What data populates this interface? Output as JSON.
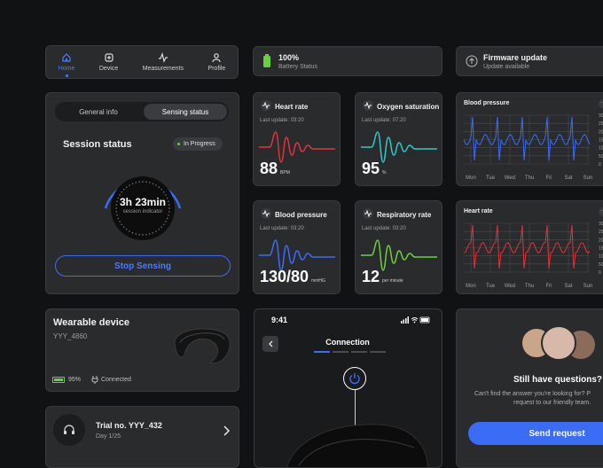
{
  "nav": {
    "items": [
      {
        "label": "Home",
        "icon": "home-icon",
        "active": true
      },
      {
        "label": "Device",
        "icon": "device-icon"
      },
      {
        "label": "Measurements",
        "icon": "pulse-icon"
      },
      {
        "label": "Profile",
        "icon": "person-icon"
      }
    ]
  },
  "battery_status": {
    "value": "100%",
    "label": "Battery Status"
  },
  "firmware": {
    "title": "Firmware update",
    "subtitle": "Update available"
  },
  "session": {
    "tabs": [
      "General info",
      "Sensing status"
    ],
    "title": "Session status",
    "badge": "In Progress",
    "duration": "3h 23min",
    "indicator_label": "session indicator",
    "stop_label": "Stop Sensing"
  },
  "metrics": [
    {
      "title": "Heart rate",
      "updated": "Last update: 03:20",
      "value": "88",
      "unit": "BPM",
      "color": "#e0343a"
    },
    {
      "title": "Oxygen saturation",
      "updated": "Last update: 07:20",
      "value": "95",
      "unit": "%",
      "color": "#2fc7c9"
    },
    {
      "title": "Blood pressure",
      "updated": "Last update: 03:20",
      "value": "130/80",
      "unit": "mmHG",
      "color": "#3b6cf6"
    },
    {
      "title": "Respiratory rate",
      "updated": "Last update: 03:20",
      "value": "12",
      "unit": "per minute",
      "color": "#6bd13a"
    }
  ],
  "chart_data": [
    {
      "type": "line",
      "title": "Blood pressure",
      "categories": [
        "Mon",
        "Tue",
        "Wed",
        "Thu",
        "Fri",
        "Sat",
        "Sun"
      ],
      "ylim": [
        0,
        300
      ],
      "yticks": [
        300,
        250,
        200,
        150,
        100,
        50,
        0
      ],
      "color": "#3b6cf6",
      "grid": true
    },
    {
      "type": "line",
      "title": "Heart rate",
      "categories": [
        "Mon",
        "Tue",
        "Wed",
        "Thu",
        "Fri",
        "Sat",
        "Sun"
      ],
      "ylim": [
        0,
        300
      ],
      "yticks": [
        300,
        250,
        200,
        150,
        100,
        50,
        0
      ],
      "color": "#e0343a",
      "grid": true
    }
  ],
  "device": {
    "title": "Wearable device",
    "id": "YYY_4860",
    "battery": "95%",
    "battery_level": 0.95,
    "status": "Connected"
  },
  "trial": {
    "title": "Trial no. YYY_432",
    "day": "Day 1/25"
  },
  "phone": {
    "time": "9:41",
    "title": "Connection"
  },
  "support": {
    "title": "Still have questions?",
    "text_line1": "Can't find the answer you're looking for? P",
    "text_line2": "request to our friendly team.",
    "button": "Send request"
  }
}
